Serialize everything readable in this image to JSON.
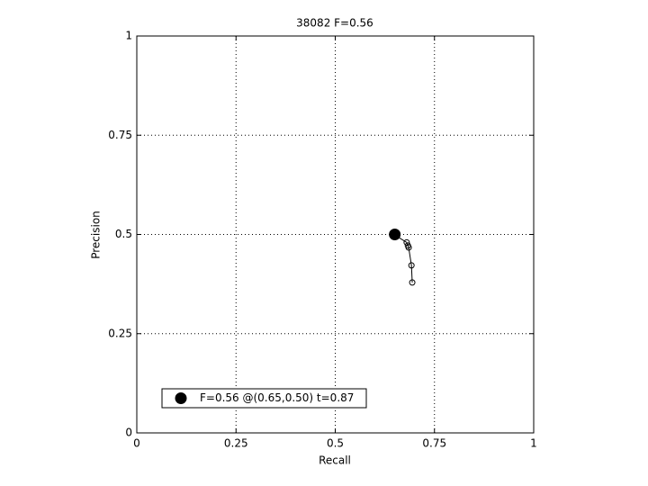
{
  "chart_data": {
    "type": "line",
    "title": "38082 F=0.56",
    "xlabel": "Recall",
    "ylabel": "Precision",
    "xlim": [
      0,
      1
    ],
    "ylim": [
      0,
      1
    ],
    "xticks": [
      0,
      0.25,
      0.5,
      0.75,
      1
    ],
    "yticks": [
      0,
      0.25,
      0.5,
      0.75,
      1
    ],
    "grid": true,
    "legend": "lower left",
    "series": [
      {
        "color": "#000000",
        "marker": "circle",
        "x": [
          0.646,
          0.68,
          0.683,
          0.685,
          0.692,
          0.694
        ],
        "values": [
          0.501,
          0.48,
          0.472,
          0.467,
          0.422,
          0.379
        ]
      },
      {
        "name": "F=0.56 @(0.65,0.50) t=0.87",
        "color": "#000000",
        "marker": "big-dot",
        "x": [
          0.65
        ],
        "values": [
          0.5
        ]
      }
    ]
  }
}
